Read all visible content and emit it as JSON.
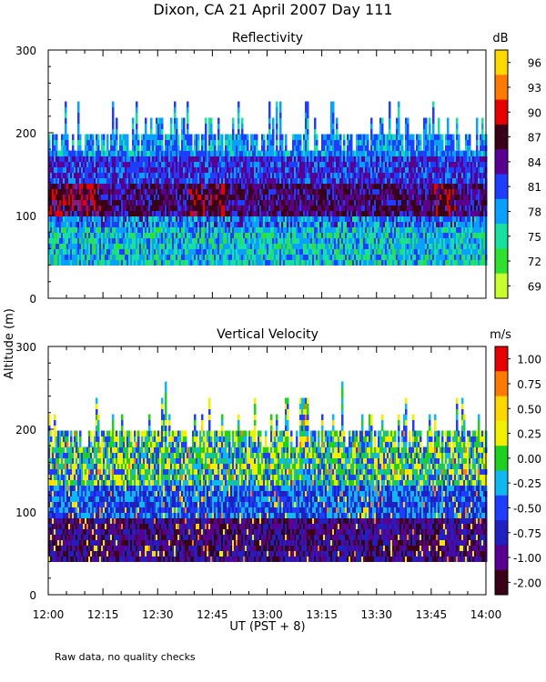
{
  "figure": {
    "title": "Dixon, CA 21 April 2007  Day 111",
    "ylabel": "Altitude (m)",
    "xlabel": "UT  (PST + 8)",
    "footnote": "Raw data, no quality checks"
  },
  "chart_data": [
    {
      "type": "heatmap",
      "title": "Reflectivity",
      "xlabel": "UT  (PST + 8)",
      "ylabel": "Altitude (m)",
      "x_range": [
        "12:00",
        "14:00"
      ],
      "xlim_minutes": [
        0,
        120
      ],
      "x_ticks": [
        "12:00",
        "12:15",
        "12:30",
        "12:45",
        "13:00",
        "13:15",
        "13:30",
        "13:45",
        "14:00"
      ],
      "ylim": [
        0,
        300
      ],
      "y_ticks": [
        0,
        100,
        200,
        300
      ],
      "colorbar": {
        "unit": "dB",
        "ticks": [
          "96",
          "93",
          "90",
          "87",
          "84",
          "81",
          "78",
          "75",
          "72",
          "69"
        ],
        "colors_top_to_bottom": [
          "#ffd800",
          "#ff7a00",
          "#e60000",
          "#3a0018",
          "#5a0090",
          "#1f3dff",
          "#0aa0ff",
          "#18e0a0",
          "#30e030",
          "#c8ff30"
        ]
      },
      "data_altitude_range_m": [
        40,
        260
      ],
      "notes": "Strongest echoes (87-93 dB) between 100 and 140 m; weaker (75-81 dB) near 40-90 m"
    },
    {
      "type": "heatmap",
      "title": "Vertical Velocity",
      "xlabel": "UT  (PST + 8)",
      "ylabel": "Altitude (m)",
      "x_range": [
        "12:00",
        "14:00"
      ],
      "xlim_minutes": [
        0,
        120
      ],
      "x_ticks": [
        "12:00",
        "12:15",
        "12:30",
        "12:45",
        "13:00",
        "13:15",
        "13:30",
        "13:45",
        "14:00"
      ],
      "ylim": [
        0,
        300
      ],
      "y_ticks": [
        0,
        100,
        200,
        300
      ],
      "colorbar": {
        "unit": "m/s",
        "ticks": [
          "1.00",
          "0.75",
          "0.50",
          "0.25",
          "0.00",
          "-0.25",
          "-0.50",
          "-0.75",
          "-1.00",
          "-2.00"
        ],
        "colors_top_to_bottom": [
          "#e60000",
          "#ff7a00",
          "#ffd800",
          "#f0f000",
          "#20d020",
          "#10b8f0",
          "#1f3dff",
          "#2020c0",
          "#5a0090",
          "#3a0018"
        ]
      },
      "data_altitude_range_m": [
        40,
        260
      ],
      "notes": "Near-surface layer (40-90 m) mostly -0.75 to -2.00 m/s; upper layer mixed -0.25 to 0.50 m/s"
    }
  ]
}
